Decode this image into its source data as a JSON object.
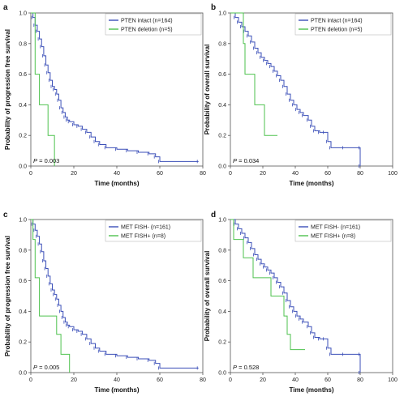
{
  "chart_data": [
    {
      "panel_letter": "a",
      "type": "line",
      "step": true,
      "xlabel": "Time (months)",
      "ylabel": "Probability of progression free survival",
      "xlim": [
        0,
        80
      ],
      "ylim": [
        0,
        1.0
      ],
      "xticks": [
        0,
        20,
        40,
        60,
        80
      ],
      "yticks": [
        0.0,
        0.2,
        0.4,
        0.6,
        0.8,
        1.0
      ],
      "legend_position": "top-right",
      "p_value_label": "P",
      "p_value": "= 0.003",
      "series": [
        {
          "name": "PTEN intact (n=164)",
          "color": "#3b4fb8",
          "points": [
            [
              0,
              1.0
            ],
            [
              1,
              0.97
            ],
            [
              2,
              0.92
            ],
            [
              3,
              0.88
            ],
            [
              4,
              0.83
            ],
            [
              5,
              0.78
            ],
            [
              6,
              0.72
            ],
            [
              7,
              0.66
            ],
            [
              8,
              0.61
            ],
            [
              9,
              0.56
            ],
            [
              10,
              0.52
            ],
            [
              11,
              0.5
            ],
            [
              12,
              0.47
            ],
            [
              13,
              0.43
            ],
            [
              14,
              0.38
            ],
            [
              15,
              0.35
            ],
            [
              16,
              0.32
            ],
            [
              17,
              0.3
            ],
            [
              18,
              0.29
            ],
            [
              20,
              0.27
            ],
            [
              22,
              0.26
            ],
            [
              24,
              0.24
            ],
            [
              26,
              0.22
            ],
            [
              28,
              0.19
            ],
            [
              30,
              0.16
            ],
            [
              32,
              0.14
            ],
            [
              35,
              0.12
            ],
            [
              40,
              0.11
            ],
            [
              45,
              0.1
            ],
            [
              50,
              0.09
            ],
            [
              55,
              0.08
            ],
            [
              58,
              0.06
            ],
            [
              60,
              0.03
            ],
            [
              78,
              0.03
            ]
          ]
        },
        {
          "name": "PTEN deletion (n=5)",
          "color": "#4ec24e",
          "points": [
            [
              0,
              1.0
            ],
            [
              2,
              0.6
            ],
            [
              4,
              0.4
            ],
            [
              8,
              0.2
            ],
            [
              11,
              0.0
            ]
          ]
        }
      ]
    },
    {
      "panel_letter": "b",
      "type": "line",
      "step": true,
      "xlabel": "Time (months)",
      "ylabel": "Probability of overall survival",
      "xlim": [
        0,
        100
      ],
      "ylim": [
        0,
        1.0
      ],
      "xticks": [
        0,
        20,
        40,
        60,
        80,
        100
      ],
      "yticks": [
        0.0,
        0.2,
        0.4,
        0.6,
        0.8,
        1.0
      ],
      "legend_position": "top-right",
      "p_value_label": "P",
      "p_value": "= 0.034",
      "series": [
        {
          "name": "PTEN intact (n=164)",
          "color": "#3b4fb8",
          "points": [
            [
              0,
              1.0
            ],
            [
              3,
              0.97
            ],
            [
              5,
              0.94
            ],
            [
              7,
              0.91
            ],
            [
              9,
              0.88
            ],
            [
              11,
              0.85
            ],
            [
              13,
              0.81
            ],
            [
              15,
              0.77
            ],
            [
              17,
              0.74
            ],
            [
              19,
              0.71
            ],
            [
              21,
              0.69
            ],
            [
              23,
              0.67
            ],
            [
              25,
              0.65
            ],
            [
              27,
              0.62
            ],
            [
              29,
              0.59
            ],
            [
              31,
              0.56
            ],
            [
              33,
              0.52
            ],
            [
              35,
              0.47
            ],
            [
              37,
              0.43
            ],
            [
              39,
              0.4
            ],
            [
              41,
              0.37
            ],
            [
              43,
              0.35
            ],
            [
              45,
              0.33
            ],
            [
              48,
              0.3
            ],
            [
              50,
              0.26
            ],
            [
              52,
              0.23
            ],
            [
              55,
              0.22
            ],
            [
              58,
              0.22
            ],
            [
              60,
              0.16
            ],
            [
              62,
              0.12
            ],
            [
              70,
              0.12
            ],
            [
              80,
              0.12
            ],
            [
              80,
              0.0
            ]
          ]
        },
        {
          "name": "PTEN deletion (n=5)",
          "color": "#4ec24e",
          "points": [
            [
              0,
              1.0
            ],
            [
              8,
              0.8
            ],
            [
              9,
              0.6
            ],
            [
              15,
              0.4
            ],
            [
              21,
              0.2
            ],
            [
              29,
              0.2
            ]
          ]
        }
      ]
    },
    {
      "panel_letter": "c",
      "type": "line",
      "step": true,
      "xlabel": "Time (months)",
      "ylabel": "Probability of progression free survival",
      "xlim": [
        0,
        80
      ],
      "ylim": [
        0,
        1.0
      ],
      "xticks": [
        0,
        20,
        40,
        60,
        80
      ],
      "yticks": [
        0.0,
        0.2,
        0.4,
        0.6,
        0.8,
        1.0
      ],
      "legend_position": "top-right",
      "p_value_label": "P",
      "p_value": "= 0.005",
      "series": [
        {
          "name": "MET FISH- (n=161)",
          "color": "#3b4fb8",
          "points": [
            [
              0,
              1.0
            ],
            [
              1,
              0.97
            ],
            [
              2,
              0.93
            ],
            [
              3,
              0.89
            ],
            [
              4,
              0.84
            ],
            [
              5,
              0.79
            ],
            [
              6,
              0.73
            ],
            [
              7,
              0.68
            ],
            [
              8,
              0.63
            ],
            [
              9,
              0.58
            ],
            [
              10,
              0.54
            ],
            [
              11,
              0.51
            ],
            [
              12,
              0.48
            ],
            [
              13,
              0.44
            ],
            [
              14,
              0.4
            ],
            [
              15,
              0.36
            ],
            [
              16,
              0.33
            ],
            [
              17,
              0.31
            ],
            [
              18,
              0.3
            ],
            [
              20,
              0.28
            ],
            [
              22,
              0.27
            ],
            [
              24,
              0.25
            ],
            [
              26,
              0.22
            ],
            [
              28,
              0.19
            ],
            [
              30,
              0.16
            ],
            [
              32,
              0.14
            ],
            [
              35,
              0.12
            ],
            [
              40,
              0.11
            ],
            [
              45,
              0.1
            ],
            [
              50,
              0.09
            ],
            [
              55,
              0.08
            ],
            [
              58,
              0.06
            ],
            [
              60,
              0.03
            ],
            [
              78,
              0.03
            ]
          ]
        },
        {
          "name": "MET FISH+ (n=8)",
          "color": "#4ec24e",
          "points": [
            [
              0,
              1.0
            ],
            [
              1,
              0.87
            ],
            [
              2,
              0.62
            ],
            [
              4,
              0.37
            ],
            [
              12,
              0.25
            ],
            [
              14,
              0.12
            ],
            [
              18,
              0.0
            ]
          ]
        }
      ]
    },
    {
      "panel_letter": "d",
      "type": "line",
      "step": true,
      "xlabel": "Time (months)",
      "ylabel": "Probability of overall survival",
      "xlim": [
        0,
        100
      ],
      "ylim": [
        0,
        1.0
      ],
      "xticks": [
        0,
        20,
        40,
        60,
        80,
        100
      ],
      "yticks": [
        0.0,
        0.2,
        0.4,
        0.6,
        0.8,
        1.0
      ],
      "legend_position": "top-right",
      "p_value_label": "P",
      "p_value": "= 0.528",
      "series": [
        {
          "name": "MET FISH- (n=161)",
          "color": "#3b4fb8",
          "points": [
            [
              0,
              1.0
            ],
            [
              3,
              0.97
            ],
            [
              5,
              0.94
            ],
            [
              7,
              0.91
            ],
            [
              9,
              0.88
            ],
            [
              11,
              0.85
            ],
            [
              13,
              0.81
            ],
            [
              15,
              0.77
            ],
            [
              17,
              0.74
            ],
            [
              19,
              0.71
            ],
            [
              21,
              0.69
            ],
            [
              23,
              0.67
            ],
            [
              25,
              0.65
            ],
            [
              27,
              0.62
            ],
            [
              29,
              0.59
            ],
            [
              31,
              0.56
            ],
            [
              33,
              0.52
            ],
            [
              35,
              0.47
            ],
            [
              37,
              0.43
            ],
            [
              39,
              0.4
            ],
            [
              41,
              0.37
            ],
            [
              43,
              0.35
            ],
            [
              45,
              0.33
            ],
            [
              48,
              0.3
            ],
            [
              50,
              0.26
            ],
            [
              52,
              0.23
            ],
            [
              55,
              0.22
            ],
            [
              58,
              0.22
            ],
            [
              60,
              0.16
            ],
            [
              62,
              0.12
            ],
            [
              70,
              0.12
            ],
            [
              80,
              0.12
            ],
            [
              80,
              0.0
            ]
          ]
        },
        {
          "name": "MET FISH+ (n=8)",
          "color": "#4ec24e",
          "points": [
            [
              0,
              1.0
            ],
            [
              2,
              0.87
            ],
            [
              8,
              0.75
            ],
            [
              14,
              0.62
            ],
            [
              21,
              0.62
            ],
            [
              25,
              0.5
            ],
            [
              33,
              0.37
            ],
            [
              35,
              0.25
            ],
            [
              37,
              0.15
            ],
            [
              46,
              0.15
            ]
          ]
        }
      ]
    }
  ]
}
